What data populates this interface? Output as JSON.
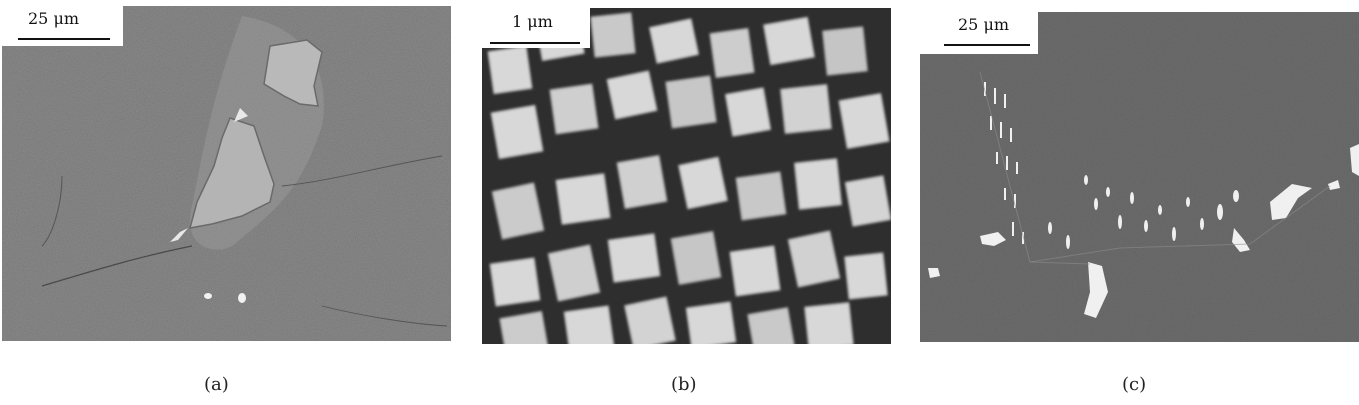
{
  "panels": [
    {
      "caption": "(a)",
      "scale_label": "25 μm"
    },
    {
      "caption": "(b)",
      "scale_label": "1 μm"
    },
    {
      "caption": "(c)",
      "scale_label": "25 μm"
    }
  ]
}
